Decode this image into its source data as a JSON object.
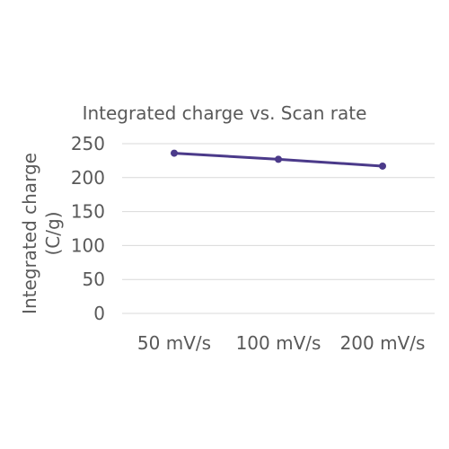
{
  "chart_data": {
    "type": "line",
    "title": "Integrated charge vs. Scan rate",
    "xlabel": "",
    "ylabel_lines": [
      "Integrated charge",
      "(C/g)"
    ],
    "categories": [
      "50 mV/s",
      "100 mV/s",
      "200 mV/s"
    ],
    "series": [
      {
        "values": [
          236,
          227,
          217
        ],
        "color": "#4b3a8a"
      }
    ],
    "ylim": [
      0,
      250
    ],
    "yticks": [
      0,
      50,
      100,
      150,
      200,
      250
    ],
    "grid": true,
    "legend": "none"
  }
}
